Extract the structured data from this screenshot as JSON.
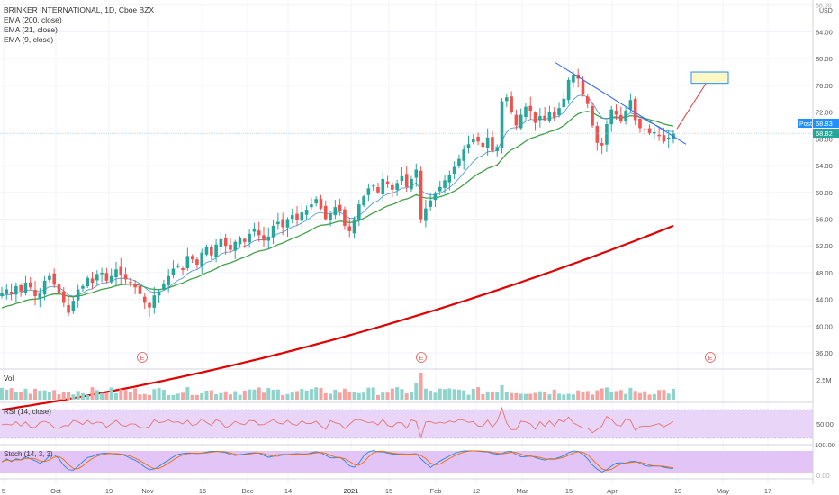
{
  "chart_data": {
    "type": "candlestick",
    "title": "BRINKER INTERNATIONAL, 1D, Cboe BZX",
    "indicators": [
      "EMA (200, close)",
      "EMA (21, close)",
      "EMA (9, close)"
    ],
    "currency": "USD",
    "price_axis": {
      "ticks": [
        "88.00",
        "84.00",
        "80.00",
        "76.00",
        "72.00",
        "68.00",
        "64.00",
        "60.00",
        "56.00",
        "52.00",
        "48.00",
        "44.00",
        "40.00",
        "36.00"
      ],
      "ylim": [
        34,
        88.5
      ]
    },
    "price_labels": {
      "post_label": "Post",
      "post_value": "68.83",
      "last_value": "68.82"
    },
    "x_axis_labels": [
      "5",
      "Oct",
      "19",
      "Nov",
      "16",
      "Dec",
      "14",
      "2021",
      "15",
      "Feb",
      "12",
      "Mar",
      "15",
      "Apr",
      "19",
      "May",
      "17"
    ],
    "closes": [
      45.0,
      45.5,
      44.8,
      46.0,
      45.2,
      46.5,
      45.8,
      44.5,
      45.0,
      46.8,
      47.5,
      46.2,
      45.0,
      43.5,
      42.0,
      43.8,
      45.5,
      46.0,
      47.2,
      46.5,
      47.8,
      48.0,
      46.8,
      47.5,
      48.5,
      47.6,
      47.0,
      46.5,
      45.8,
      44.8,
      43.5,
      42.8,
      44.6,
      45.2,
      46.4,
      47.5,
      48.6,
      49.0,
      48.4,
      50.5,
      50.0,
      49.2,
      51.0,
      51.8,
      50.6,
      52.2,
      53.0,
      52.0,
      51.4,
      52.6,
      53.2,
      52.6,
      53.8,
      54.6,
      53.6,
      52.8,
      53.4,
      55.0,
      55.6,
      54.8,
      56.0,
      56.6,
      55.8,
      57.0,
      57.4,
      58.2,
      59.0,
      57.6,
      56.0,
      56.8,
      57.8,
      57.2,
      55.0,
      54.2,
      56.0,
      58.2,
      59.4,
      60.6,
      61.0,
      60.0,
      62.0,
      61.2,
      60.4,
      61.4,
      62.4,
      60.8,
      62.0,
      63.4,
      56.0,
      57.6,
      58.8,
      59.8,
      60.8,
      61.8,
      62.6,
      63.8,
      65.0,
      66.4,
      67.2,
      68.0,
      67.6,
      66.8,
      68.2,
      66.2,
      66.8,
      73.6,
      74.2,
      72.0,
      70.0,
      71.6,
      72.8,
      72.2,
      70.4,
      71.4,
      70.8,
      72.0,
      71.2,
      72.6,
      74.0,
      76.8,
      77.6,
      77.0,
      74.6,
      73.2,
      70.0,
      67.4,
      67.0,
      70.2,
      72.4,
      71.6,
      70.6,
      72.2,
      73.8,
      70.8,
      69.6,
      69.4,
      68.8,
      69.0,
      68.4,
      67.6,
      68.2,
      68.8
    ],
    "ema200_values": [
      27.5,
      55.0
    ],
    "ema21_last": 69.7,
    "ema9_last": 69.2,
    "annotations": {
      "target_box_range": [
        76.3,
        78.0
      ],
      "arrow_to": 77.1,
      "earnings_marker": "E"
    },
    "volume_pane": {
      "label": "Vol",
      "tick": "2.5M"
    },
    "rsi_pane": {
      "label": "RSI (14, close)",
      "tick": "50.00"
    },
    "stoch_pane": {
      "label": "Stoch (14, 3, 3)",
      "ticks": [
        "100.00",
        "0.00"
      ]
    }
  },
  "colors": {
    "up": "#26a69a",
    "down": "#ef5350",
    "ema200": "#e00000",
    "ema21": "#43a047",
    "ema9": "#3f8fd6",
    "trend": "#2962ff",
    "price_box": "#1e90ff",
    "rsi_bg": "#e9d5f7",
    "stoch_bg": "#e3c4f6"
  }
}
